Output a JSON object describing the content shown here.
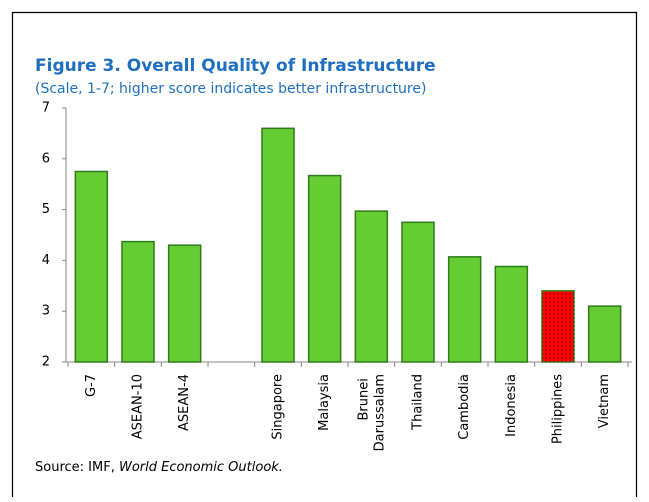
{
  "chart_data": {
    "type": "bar",
    "title": "Figure 3. Overall Quality of Infrastructure",
    "subtitle": "(Scale, 1-7; higher score indicates better infrastructure)",
    "categories": [
      "G-7",
      "ASEAN-10",
      "ASEAN-4",
      null,
      "Singapore",
      "Malaysia",
      "Brunei Darussalam",
      "Thailand",
      "Cambodia",
      "Indonesia",
      "Philippines",
      "Vietnam"
    ],
    "values": [
      5.75,
      4.37,
      4.3,
      null,
      6.6,
      5.67,
      4.97,
      4.75,
      4.07,
      3.88,
      3.4,
      3.1
    ],
    "colors": [
      "#66cc33",
      "#66cc33",
      "#66cc33",
      null,
      "#66cc33",
      "#66cc33",
      "#66cc33",
      "#66cc33",
      "#66cc33",
      "#66cc33",
      "#ff0000",
      "#66cc33"
    ],
    "ylim": [
      2,
      7
    ],
    "yticks": [
      2,
      3,
      4,
      5,
      6,
      7
    ],
    "grid": false,
    "source_prefix": "Source: IMF, ",
    "source_italic": "World Economic Outlook."
  }
}
